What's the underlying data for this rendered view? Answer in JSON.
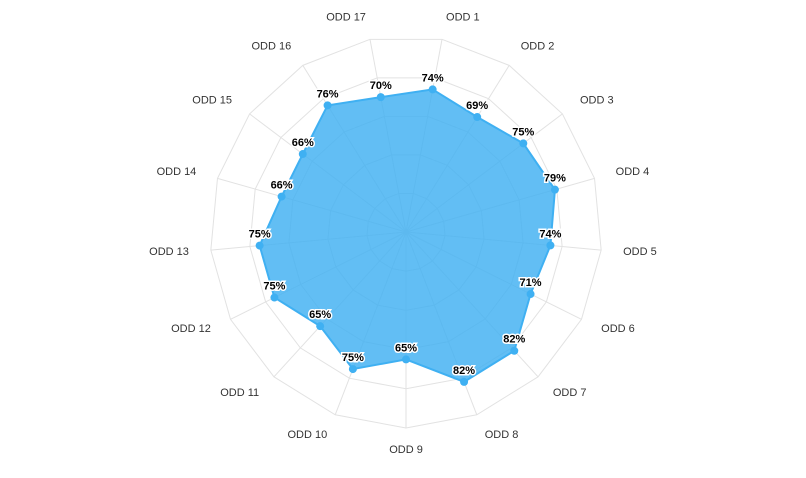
{
  "chart_data": {
    "type": "radar",
    "categories": [
      "ODD 1",
      "ODD 2",
      "ODD 3",
      "ODD 4",
      "ODD 5",
      "ODD 6",
      "ODD 7",
      "ODD 8",
      "ODD 9",
      "ODD 10",
      "ODD 11",
      "ODD 12",
      "ODD 13",
      "ODD 14",
      "ODD 15",
      "ODD 16",
      "ODD 17"
    ],
    "values": [
      74,
      69,
      75,
      79,
      74,
      71,
      82,
      82,
      65,
      75,
      65,
      75,
      75,
      66,
      66,
      76,
      70
    ],
    "value_labels": [
      "74%",
      "69%",
      "75%",
      "79%",
      "74%",
      "71%",
      "82%",
      "82%",
      "65%",
      "75%",
      "65%",
      "75%",
      "75%",
      "66%",
      "66%",
      "76%",
      "70%"
    ],
    "color": "#3fb0f2",
    "ylim": [
      0,
      100
    ],
    "yticks": [
      20,
      40,
      60,
      80,
      100
    ],
    "grid": true
  }
}
